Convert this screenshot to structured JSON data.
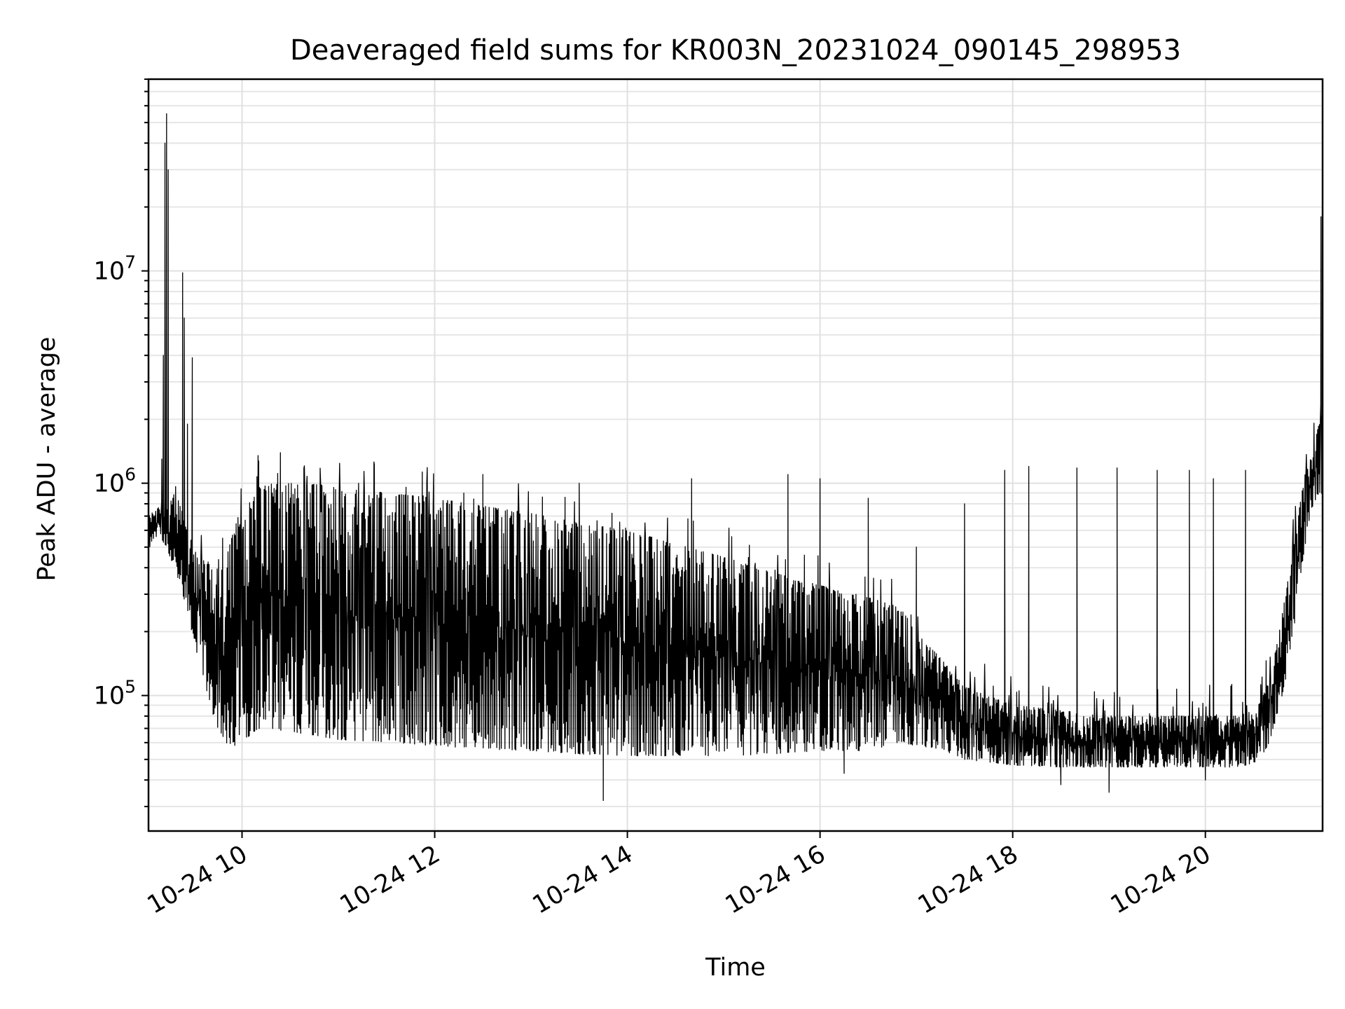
{
  "chart_data": {
    "type": "line",
    "title": "Deaveraged field sums for KR003N_20231024_090145_298953",
    "xlabel": "Time",
    "ylabel": "Peak ADU - average",
    "y_scale": "log",
    "ylim": [
      23000,
      80000000
    ],
    "xlim": [
      "2023-10-24 09:01:45",
      "2023-10-24 21:13:00"
    ],
    "grid": true,
    "x_ticks": [
      {
        "value": "2023-10-24 10:00",
        "label": "10-24 10"
      },
      {
        "value": "2023-10-24 12:00",
        "label": "10-24 12"
      },
      {
        "value": "2023-10-24 14:00",
        "label": "10-24 14"
      },
      {
        "value": "2023-10-24 16:00",
        "label": "10-24 16"
      },
      {
        "value": "2023-10-24 18:00",
        "label": "10-24 18"
      },
      {
        "value": "2023-10-24 20:00",
        "label": "10-24 20"
      }
    ],
    "y_ticks": [
      {
        "value": 100000,
        "base": "10",
        "exp": "5"
      },
      {
        "value": 1000000,
        "base": "10",
        "exp": "6"
      },
      {
        "value": 10000000,
        "base": "10",
        "exp": "7"
      }
    ],
    "envelope": {
      "t": [
        "2023-10-24 09:01:45",
        "2023-10-24 09:05",
        "2023-10-24 09:08",
        "2023-10-24 09:10",
        "2023-10-24 09:12",
        "2023-10-24 09:15",
        "2023-10-24 09:18",
        "2023-10-24 09:22",
        "2023-10-24 09:26",
        "2023-10-24 09:30",
        "2023-10-24 09:35",
        "2023-10-24 09:40",
        "2023-10-24 09:45",
        "2023-10-24 09:50",
        "2023-10-24 09:55",
        "2023-10-24 10:00",
        "2023-10-24 10:05",
        "2023-10-24 10:10",
        "2023-10-24 10:20",
        "2023-10-24 10:40",
        "2023-10-24 11:00",
        "2023-10-24 11:30",
        "2023-10-24 12:00",
        "2023-10-24 12:30",
        "2023-10-24 13:00",
        "2023-10-24 13:30",
        "2023-10-24 14:00",
        "2023-10-24 14:30",
        "2023-10-24 15:00",
        "2023-10-24 15:30",
        "2023-10-24 16:00",
        "2023-10-24 16:30",
        "2023-10-24 16:50",
        "2023-10-24 17:00",
        "2023-10-24 17:15",
        "2023-10-24 17:30",
        "2023-10-24 18:00",
        "2023-10-24 18:30",
        "2023-10-24 19:00",
        "2023-10-24 19:30",
        "2023-10-24 20:00",
        "2023-10-24 20:20",
        "2023-10-24 20:30",
        "2023-10-24 20:35",
        "2023-10-24 20:40",
        "2023-10-24 20:45",
        "2023-10-24 20:50",
        "2023-10-24 20:55",
        "2023-10-24 21:00",
        "2023-10-24 21:05",
        "2023-10-24 21:10",
        "2023-10-24 21:13"
      ],
      "low": [
        500000,
        500000,
        600000,
        550000,
        500000,
        450000,
        400000,
        320000,
        250000,
        180000,
        130000,
        90000,
        70000,
        60000,
        58000,
        60000,
        65000,
        70000,
        68000,
        66000,
        62000,
        60000,
        58000,
        56000,
        55000,
        53000,
        52000,
        52000,
        52000,
        53000,
        55000,
        55000,
        60000,
        58000,
        56000,
        50000,
        47000,
        46000,
        46000,
        46000,
        46000,
        46000,
        48000,
        52000,
        60000,
        80000,
        120000,
        200000,
        400000,
        700000,
        900000,
        700000
      ],
      "high": [
        800000,
        700000,
        800000,
        750000,
        700000,
        800000,
        900000,
        800000,
        600000,
        500000,
        450000,
        420000,
        420000,
        450000,
        600000,
        800000,
        900000,
        950000,
        1000000,
        1000000,
        950000,
        900000,
        850000,
        780000,
        720000,
        650000,
        600000,
        520000,
        450000,
        380000,
        330000,
        290000,
        260000,
        200000,
        150000,
        110000,
        90000,
        85000,
        80000,
        80000,
        80000,
        80000,
        85000,
        95000,
        120000,
        180000,
        300000,
        500000,
        900000,
        1300000,
        1800000,
        2200000
      ]
    },
    "spikes": [
      {
        "t": "2023-10-24 09:10:00",
        "value": 1300000
      },
      {
        "t": "2023-10-24 09:11:00",
        "value": 4000000
      },
      {
        "t": "2023-10-24 09:12:00",
        "value": 40000000
      },
      {
        "t": "2023-10-24 09:13:00",
        "value": 55000000
      },
      {
        "t": "2023-10-24 09:14:00",
        "value": 30000000
      },
      {
        "t": "2023-10-24 09:23:00",
        "value": 9800000
      },
      {
        "t": "2023-10-24 09:24:00",
        "value": 6000000
      },
      {
        "t": "2023-10-24 09:26:00",
        "value": 1900000
      },
      {
        "t": "2023-10-24 09:29:00",
        "value": 3900000
      },
      {
        "t": "2023-10-24 10:10:00",
        "value": 1350000
      },
      {
        "t": "2023-10-24 12:30:00",
        "value": 1100000
      },
      {
        "t": "2023-10-24 13:30:00",
        "value": 1000000
      },
      {
        "t": "2023-10-24 14:40:00",
        "value": 1050000
      },
      {
        "t": "2023-10-24 15:40:00",
        "value": 1100000
      },
      {
        "t": "2023-10-24 16:00:00",
        "value": 1050000
      },
      {
        "t": "2023-10-24 16:30:00",
        "value": 850000
      },
      {
        "t": "2023-10-24 17:00:00",
        "value": 500000
      },
      {
        "t": "2023-10-24 17:30:00",
        "value": 800000
      },
      {
        "t": "2023-10-24 17:55:00",
        "value": 1150000
      },
      {
        "t": "2023-10-24 18:10:00",
        "value": 1200000
      },
      {
        "t": "2023-10-24 18:40:00",
        "value": 1180000
      },
      {
        "t": "2023-10-24 19:05:00",
        "value": 1180000
      },
      {
        "t": "2023-10-24 19:30:00",
        "value": 1150000
      },
      {
        "t": "2023-10-24 19:50:00",
        "value": 1150000
      },
      {
        "t": "2023-10-24 20:05:00",
        "value": 1050000
      },
      {
        "t": "2023-10-24 20:25:00",
        "value": 1150000
      },
      {
        "t": "2023-10-24 21:12:00",
        "value": 18000000
      }
    ],
    "dips": [
      {
        "t": "2023-10-24 13:45:00",
        "value": 32000
      },
      {
        "t": "2023-10-24 16:15:00",
        "value": 43000
      },
      {
        "t": "2023-10-24 18:30:00",
        "value": 38000
      },
      {
        "t": "2023-10-24 19:00:00",
        "value": 35000
      },
      {
        "t": "2023-10-24 20:00:00",
        "value": 40000
      }
    ]
  }
}
